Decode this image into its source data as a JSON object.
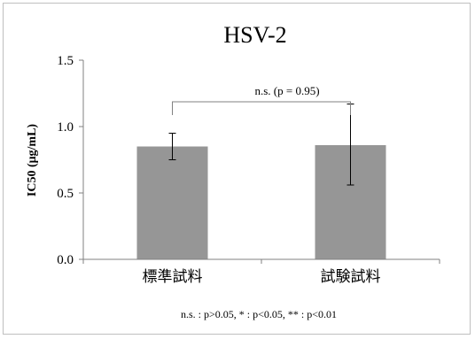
{
  "chart_data": {
    "type": "bar",
    "title": "HSV-2",
    "ylabel": "IC50 (μg/mL)",
    "xlabel": "",
    "categories": [
      "標準試料",
      "試験試料"
    ],
    "values": [
      0.85,
      0.86
    ],
    "error_bars": [
      {
        "low": 0.75,
        "high": 0.95
      },
      {
        "low": 0.56,
        "high": 1.17
      }
    ],
    "ylim": [
      0,
      1.5
    ],
    "yticks": [
      0.0,
      0.5,
      1.0,
      1.5
    ],
    "ytick_labels": [
      "0.0",
      "0.5",
      "1.0",
      "1.5"
    ],
    "bar_color": "#969696",
    "grid": false,
    "annotation": "n.s. (p = 0.95)",
    "footnote": "n.s. : p>0.05, * : p<0.05, ** : p<0.01"
  }
}
